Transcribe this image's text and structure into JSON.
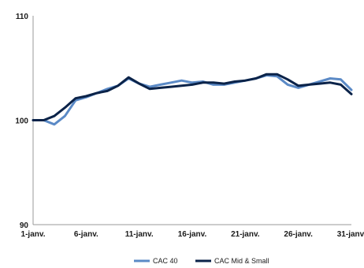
{
  "chart_data": {
    "type": "line",
    "title": "",
    "xlabel": "",
    "ylabel": "",
    "ylim": [
      90,
      110
    ],
    "yticks": [
      "90",
      "100",
      "110"
    ],
    "x_tick_labels": [
      "1-janv.",
      "6-janv.",
      "11-janv.",
      "16-janv.",
      "21-janv.",
      "26-janv.",
      "31-janv."
    ],
    "x": [
      1,
      2,
      3,
      4,
      5,
      6,
      7,
      8,
      9,
      10,
      11,
      12,
      13,
      14,
      15,
      16,
      17,
      18,
      19,
      20,
      21,
      22,
      23,
      24,
      25,
      26,
      27,
      28,
      29,
      30,
      31
    ],
    "grid": false,
    "legend_position": "bottom",
    "series": [
      {
        "name": "CAC 40",
        "color": "#5b8ac6",
        "values": [
          100.0,
          100.0,
          99.6,
          100.4,
          101.9,
          102.2,
          102.6,
          103.0,
          103.3,
          104.0,
          103.5,
          103.2,
          103.4,
          103.6,
          103.8,
          103.6,
          103.7,
          103.4,
          103.4,
          103.6,
          103.8,
          104.0,
          104.3,
          104.2,
          103.4,
          103.1,
          103.4,
          103.7,
          104.0,
          103.9,
          102.9
        ]
      },
      {
        "name": "CAC Mid & Small",
        "color": "#0b2349",
        "values": [
          100.0,
          100.0,
          100.4,
          101.2,
          102.1,
          102.3,
          102.6,
          102.8,
          103.3,
          104.1,
          103.5,
          103.0,
          103.1,
          103.2,
          103.3,
          103.4,
          103.6,
          103.6,
          103.5,
          103.7,
          103.8,
          104.0,
          104.4,
          104.4,
          103.9,
          103.3,
          103.4,
          103.5,
          103.6,
          103.4,
          102.5
        ]
      }
    ]
  }
}
